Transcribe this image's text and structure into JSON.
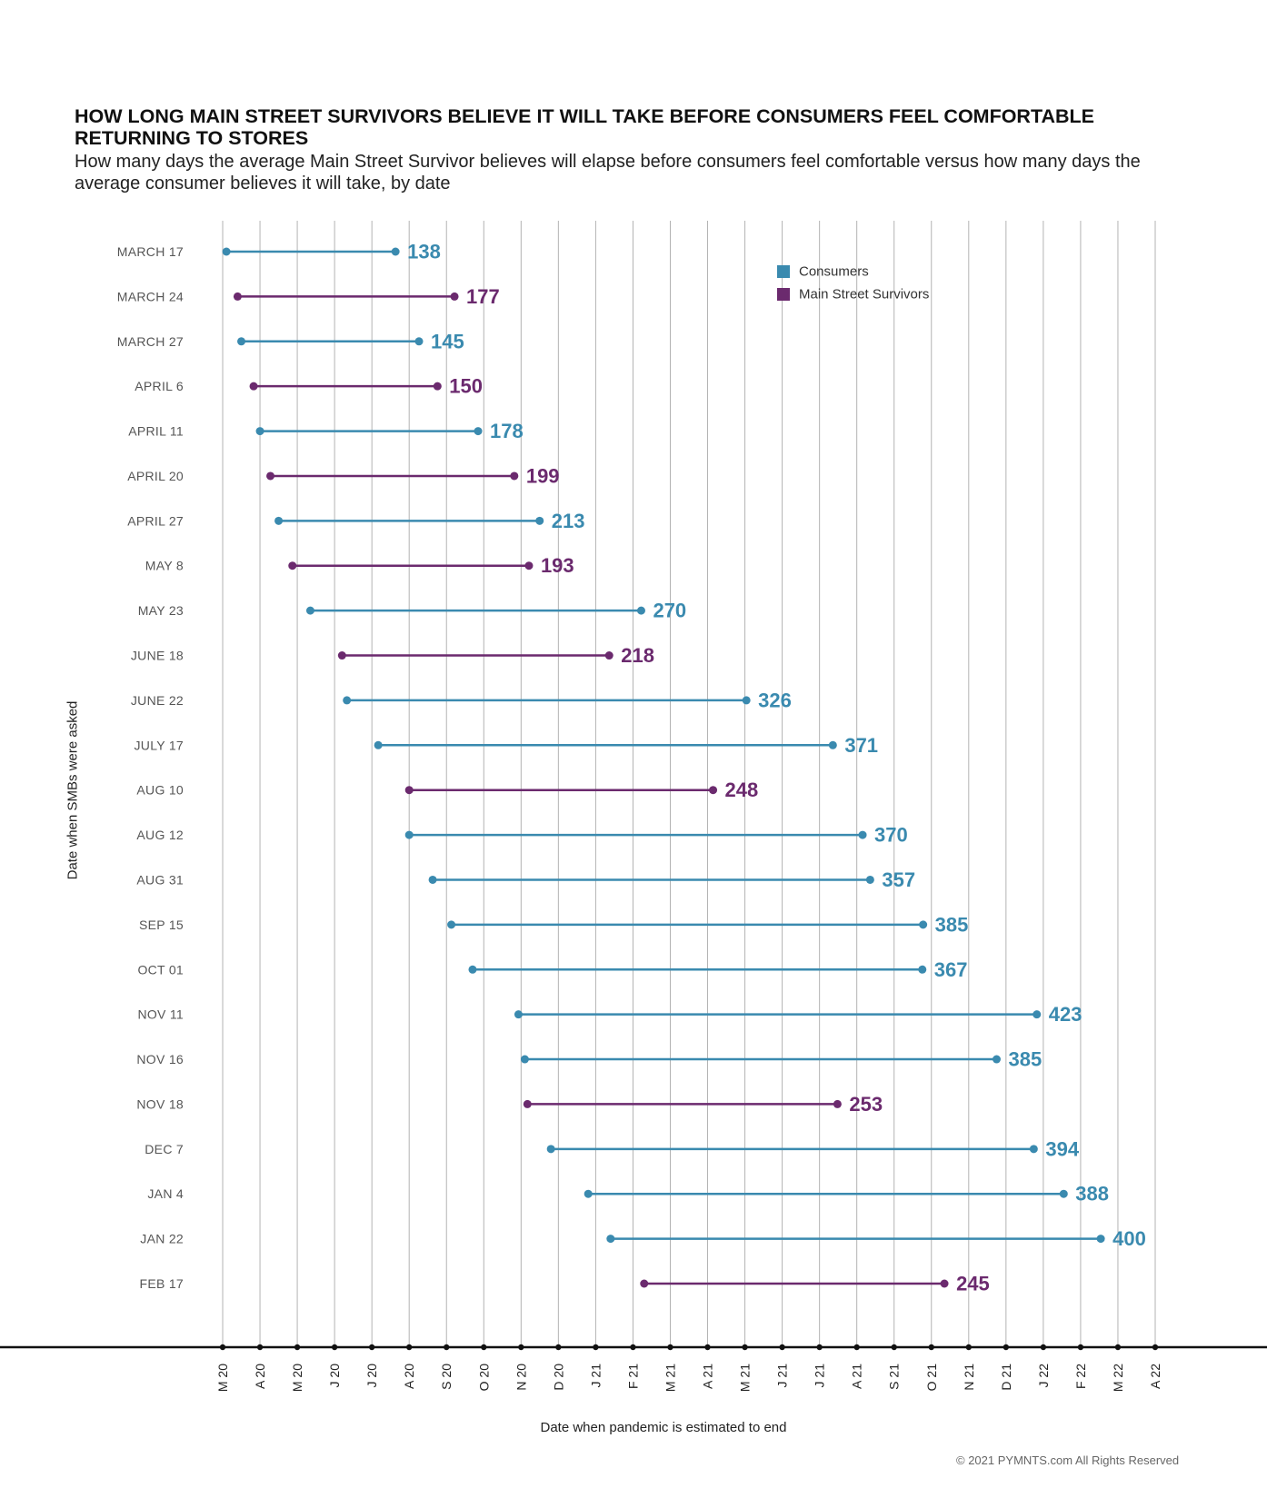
{
  "chart_data": {
    "type": "dumbbell",
    "title": "HOW LONG MAIN STREET SURVIVORS BELIEVE IT WILL TAKE BEFORE CONSUMERS FEEL COMFORTABLE RETURNING TO STORES",
    "subtitle": "How many days the average Main Street Survivor believes will elapse before consumers feel comfortable versus how many days the average consumer believes it will take, by date",
    "ylabel": "Date when SMBs were asked",
    "xlabel": "Date when pandemic is estimated to end",
    "x_ticks": [
      "M 20",
      "A 20",
      "M 20",
      "J 20",
      "J 20",
      "A 20",
      "S 20",
      "O 20",
      "N 20",
      "D 20",
      "J 21",
      "F 21",
      "M 21",
      "A 21",
      "M 21",
      "J 21",
      "J 21",
      "A 21",
      "S 21",
      "O 21",
      "N 21",
      "D 21",
      "J 22",
      "F 22",
      "M 22",
      "A 22"
    ],
    "x_range_months": [
      0,
      25
    ],
    "series_legend": [
      {
        "name": "Consumers",
        "color": "#3a8aaf"
      },
      {
        "name": "Main Street Survivors",
        "color": "#6b2a6e"
      }
    ],
    "rows": [
      {
        "label": "MARCH 17",
        "series": "Consumers",
        "start_month": 0.1,
        "days": 138
      },
      {
        "label": "MARCH 24",
        "series": "Main Street Survivors",
        "start_month": 0.4,
        "days": 177
      },
      {
        "label": "MARCH 27",
        "series": "Consumers",
        "start_month": 0.5,
        "days": 145
      },
      {
        "label": "APRIL 6",
        "series": "Main Street Survivors",
        "start_month": 0.83,
        "days": 150
      },
      {
        "label": "APRIL 11",
        "series": "Consumers",
        "start_month": 1.0,
        "days": 178
      },
      {
        "label": "APRIL 20",
        "series": "Main Street Survivors",
        "start_month": 1.28,
        "days": 199
      },
      {
        "label": "APRIL 27",
        "series": "Consumers",
        "start_month": 1.5,
        "days": 213
      },
      {
        "label": "MAY 8",
        "series": "Main Street Survivors",
        "start_month": 1.87,
        "days": 193
      },
      {
        "label": "MAY 23",
        "series": "Consumers",
        "start_month": 2.35,
        "days": 270
      },
      {
        "label": "JUNE 18",
        "series": "Main Street Survivors",
        "start_month": 3.2,
        "days": 218
      },
      {
        "label": "JUNE 22",
        "series": "Consumers",
        "start_month": 3.33,
        "days": 326
      },
      {
        "label": "JULY 17",
        "series": "Consumers",
        "start_month": 4.17,
        "days": 371
      },
      {
        "label": "AUG 10",
        "series": "Main Street Survivors",
        "start_month": 5.0,
        "days": 248
      },
      {
        "label": "AUG 12",
        "series": "Consumers",
        "start_month": 5.0,
        "days": 370
      },
      {
        "label": "AUG 31",
        "series": "Consumers",
        "start_month": 5.63,
        "days": 357
      },
      {
        "label": "SEP 15",
        "series": "Consumers",
        "start_month": 6.13,
        "days": 385
      },
      {
        "label": "OCT 01",
        "series": "Consumers",
        "start_month": 6.7,
        "days": 367
      },
      {
        "label": "NOV 11",
        "series": "Consumers",
        "start_month": 7.93,
        "days": 423
      },
      {
        "label": "NOV 16",
        "series": "Consumers",
        "start_month": 8.1,
        "days": 385
      },
      {
        "label": "NOV 18",
        "series": "Main Street Survivors",
        "start_month": 8.17,
        "days": 253
      },
      {
        "label": "DEC 7",
        "series": "Consumers",
        "start_month": 8.8,
        "days": 394
      },
      {
        "label": "JAN 4",
        "series": "Consumers",
        "start_month": 9.8,
        "days": 388
      },
      {
        "label": "JAN 22",
        "series": "Consumers",
        "start_month": 10.4,
        "days": 400
      },
      {
        "label": "FEB 17",
        "series": "Main Street Survivors",
        "start_month": 11.3,
        "days": 245
      }
    ]
  },
  "copyright": "© 2021 PYMNTS.com All Rights Reserved"
}
